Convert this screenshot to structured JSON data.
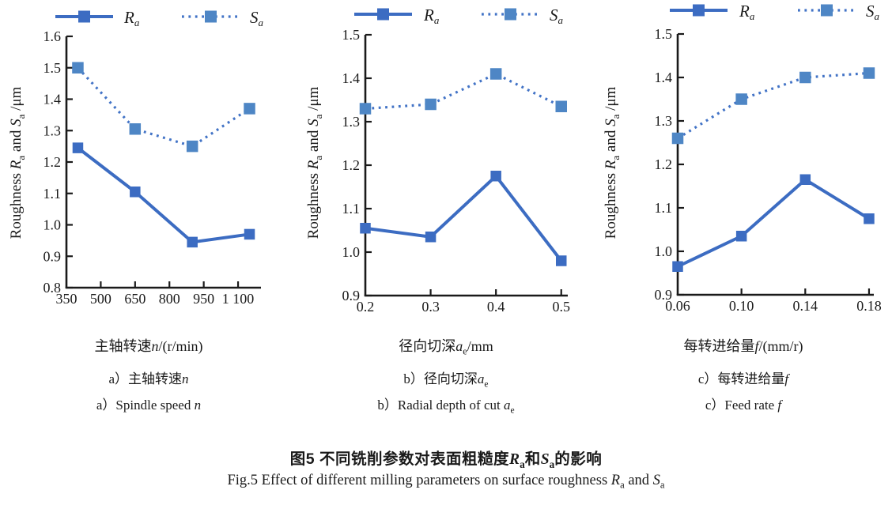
{
  "ylabel": {
    "prefix": "Roughness ",
    "sym1": "R",
    "sub1": "a",
    "mid": " and ",
    "sym2": "S",
    "sub2": "a",
    "suffix": " /μm"
  },
  "figure": {
    "title_cn": {
      "prefix": "图5 不同铣削参数对表面粗糙度",
      "sym1": "R",
      "sub1": "a",
      "mid": "和",
      "sym2": "S",
      "sub2": "a",
      "suffix": "的影响"
    },
    "title_en": {
      "prefix": "Fig.5  Effect of different milling parameters on surface roughness ",
      "sym1": "R",
      "sub1": "a",
      "mid": " and ",
      "sym2": "S",
      "sub2": "a",
      "suffix": ""
    }
  },
  "colors": {
    "ra_line": "#3C6CC2",
    "sa_line": "#4273C6",
    "ra_marker": "#3C6CC2",
    "sa_marker": "#4E86C5",
    "axis": "#1a1a1a",
    "text": "#1a1a1a"
  },
  "chart_data": [
    {
      "type": "line",
      "x": [
        400,
        650,
        900,
        1150
      ],
      "xlim": [
        350,
        1200
      ],
      "xticks": [
        350,
        500,
        650,
        800,
        950,
        1100
      ],
      "xticklabels": [
        "350",
        "500",
        "650",
        "800",
        "950",
        "1 100"
      ],
      "ylim": [
        0.8,
        1.6
      ],
      "yticks": [
        0.8,
        0.9,
        1.0,
        1.1,
        1.2,
        1.3,
        1.4,
        1.5,
        1.6
      ],
      "yticklabels": [
        "0.8",
        "0.9",
        "1.0",
        "1.1",
        "1.2",
        "1.3",
        "1.4",
        "1.5",
        "1.6"
      ],
      "legend_position": "top",
      "grid": false,
      "series": [
        {
          "sym": "R",
          "sub": "a",
          "style": "solid",
          "values": [
            1.245,
            1.105,
            0.945,
            0.97
          ]
        },
        {
          "sym": "S",
          "sub": "a",
          "style": "dotted",
          "values": [
            1.5,
            1.305,
            1.25,
            1.37
          ]
        }
      ],
      "xlabel": {
        "prefix": "主轴转速",
        "sym": "n",
        "sym_sub": "",
        "suffix": "/(r/min)"
      },
      "caption_cn": {
        "prefix": "a）主轴转速",
        "sym": "n",
        "sym_sub": ""
      },
      "caption_en": {
        "prefix": "a）Spindle speed ",
        "sym": "n",
        "sym_sub": ""
      }
    },
    {
      "type": "line",
      "x": [
        0.2,
        0.3,
        0.4,
        0.5
      ],
      "xlim": [
        0.2,
        0.51
      ],
      "xticks": [
        0.2,
        0.3,
        0.4,
        0.5
      ],
      "xticklabels": [
        "0.2",
        "0.3",
        "0.4",
        "0.5"
      ],
      "ylim": [
        0.9,
        1.5
      ],
      "yticks": [
        0.9,
        1.0,
        1.1,
        1.2,
        1.3,
        1.4,
        1.5
      ],
      "yticklabels": [
        "0.9",
        "1.0",
        "1.1",
        "1.2",
        "1.3",
        "1.4",
        "1.5"
      ],
      "legend_position": "top",
      "grid": false,
      "series": [
        {
          "sym": "R",
          "sub": "a",
          "style": "solid",
          "values": [
            1.055,
            1.035,
            1.175,
            0.98
          ]
        },
        {
          "sym": "S",
          "sub": "a",
          "style": "dotted",
          "values": [
            1.33,
            1.34,
            1.41,
            1.335
          ]
        }
      ],
      "xlabel": {
        "prefix": "径向切深",
        "sym": "a",
        "sym_sub": "e",
        "suffix": "/mm"
      },
      "caption_cn": {
        "prefix": "b）径向切深",
        "sym": "a",
        "sym_sub": "e"
      },
      "caption_en": {
        "prefix": "b）Radial depth of cut ",
        "sym": "a",
        "sym_sub": "e"
      }
    },
    {
      "type": "line",
      "x": [
        0.06,
        0.1,
        0.14,
        0.18
      ],
      "xlim": [
        0.06,
        0.183
      ],
      "xticks": [
        0.06,
        0.1,
        0.14,
        0.18
      ],
      "xticklabels": [
        "0.06",
        "0.10",
        "0.14",
        "0.18"
      ],
      "ylim": [
        0.9,
        1.5
      ],
      "yticks": [
        0.9,
        1.0,
        1.1,
        1.2,
        1.3,
        1.4,
        1.5
      ],
      "yticklabels": [
        "0.9",
        "1.0",
        "1.1",
        "1.2",
        "1.3",
        "1.4",
        "1.5"
      ],
      "legend_position": "top",
      "grid": false,
      "series": [
        {
          "sym": "R",
          "sub": "a",
          "style": "solid",
          "values": [
            0.965,
            1.035,
            1.165,
            1.075
          ]
        },
        {
          "sym": "S",
          "sub": "a",
          "style": "dotted",
          "values": [
            1.26,
            1.35,
            1.4,
            1.41
          ]
        }
      ],
      "xlabel": {
        "prefix": "每转进给量",
        "sym": "f",
        "sym_sub": "",
        "suffix": "/(mm/r)"
      },
      "caption_cn": {
        "prefix": "c）每转进给量",
        "sym": "f",
        "sym_sub": ""
      },
      "caption_en": {
        "prefix": "c）Feed rate ",
        "sym": "f",
        "sym_sub": ""
      }
    }
  ]
}
